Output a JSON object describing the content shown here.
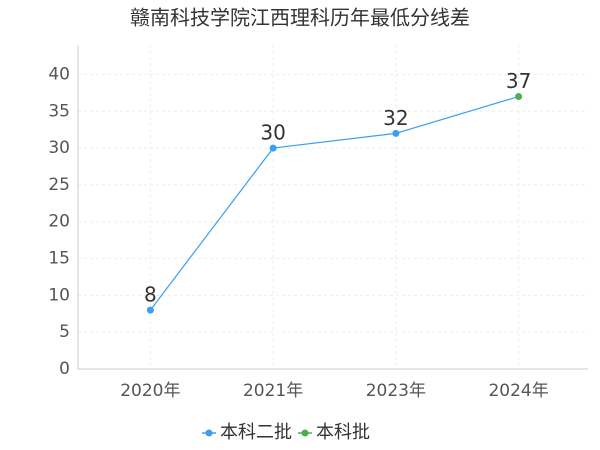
{
  "chart_data": {
    "type": "line",
    "title": "赣南科技学院江西理科历年最低分线差",
    "categories": [
      "2020年",
      "2021年",
      "2023年",
      "2024年"
    ],
    "series": [
      {
        "name": "本科二批",
        "color": "#3a9ff0",
        "values": [
          8,
          30,
          32,
          null
        ]
      },
      {
        "name": "本科批",
        "color": "#4cb050",
        "values": [
          null,
          null,
          null,
          37
        ]
      }
    ],
    "ylim": [
      0,
      44
    ],
    "yticks": [
      0,
      5,
      10,
      15,
      20,
      25,
      30,
      35,
      40
    ],
    "grid": true,
    "legend": "bottom"
  }
}
